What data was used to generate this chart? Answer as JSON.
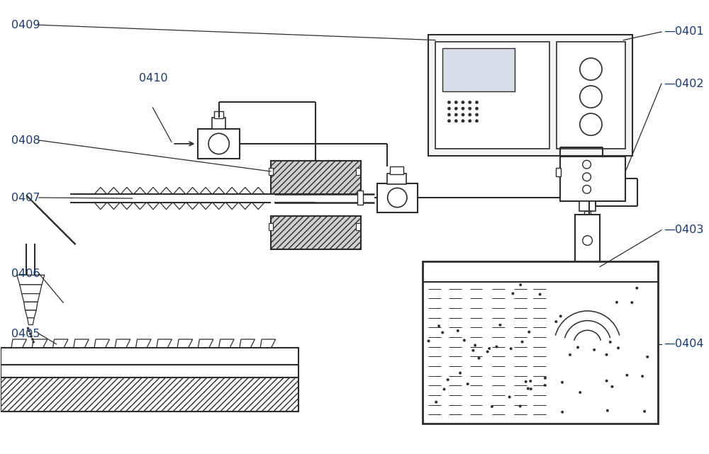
{
  "bg_color": "#ffffff",
  "line_color": "#2c2c2c",
  "label_color": "#1a3a6b",
  "lw_main": 1.3,
  "lw_thick": 1.8,
  "lw_thin": 0.8
}
